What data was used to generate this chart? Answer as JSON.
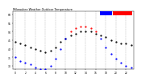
{
  "title": "Milwaukee Weather Outdoor Temperature vs THSW Index per Hour (24 Hours)",
  "hours": [
    0,
    1,
    2,
    3,
    4,
    5,
    6,
    7,
    8,
    9,
    10,
    11,
    12,
    13,
    14,
    15,
    16,
    17,
    18,
    19,
    20,
    21,
    22,
    23
  ],
  "temp": [
    44,
    43,
    42,
    41,
    40,
    39,
    39,
    40,
    42,
    45,
    47,
    48,
    49,
    50,
    50,
    50,
    49,
    48,
    47,
    46,
    45,
    44,
    44,
    43
  ],
  "thsw": [
    38,
    36,
    35,
    34,
    32,
    31,
    31,
    33,
    37,
    42,
    47,
    51,
    54,
    56,
    57,
    56,
    54,
    51,
    47,
    44,
    41,
    39,
    37,
    36
  ],
  "temp_color": "#000000",
  "thsw_color_low": "#0000ff",
  "thsw_color_high": "#ff0000",
  "background": "#ffffff",
  "grid_color": "#aaaaaa",
  "ylim": [
    28,
    62
  ],
  "xlim": [
    -0.5,
    23.5
  ],
  "legend_box_blue": "#0000ff",
  "legend_box_red": "#ff0000",
  "tick_hours": [
    0,
    2,
    4,
    6,
    8,
    10,
    12,
    14,
    16,
    18,
    20,
    22
  ],
  "ytick_vals": [
    30,
    35,
    40,
    45,
    50,
    55,
    60
  ],
  "thsw_threshold": 50,
  "dotsize": 1.2
}
